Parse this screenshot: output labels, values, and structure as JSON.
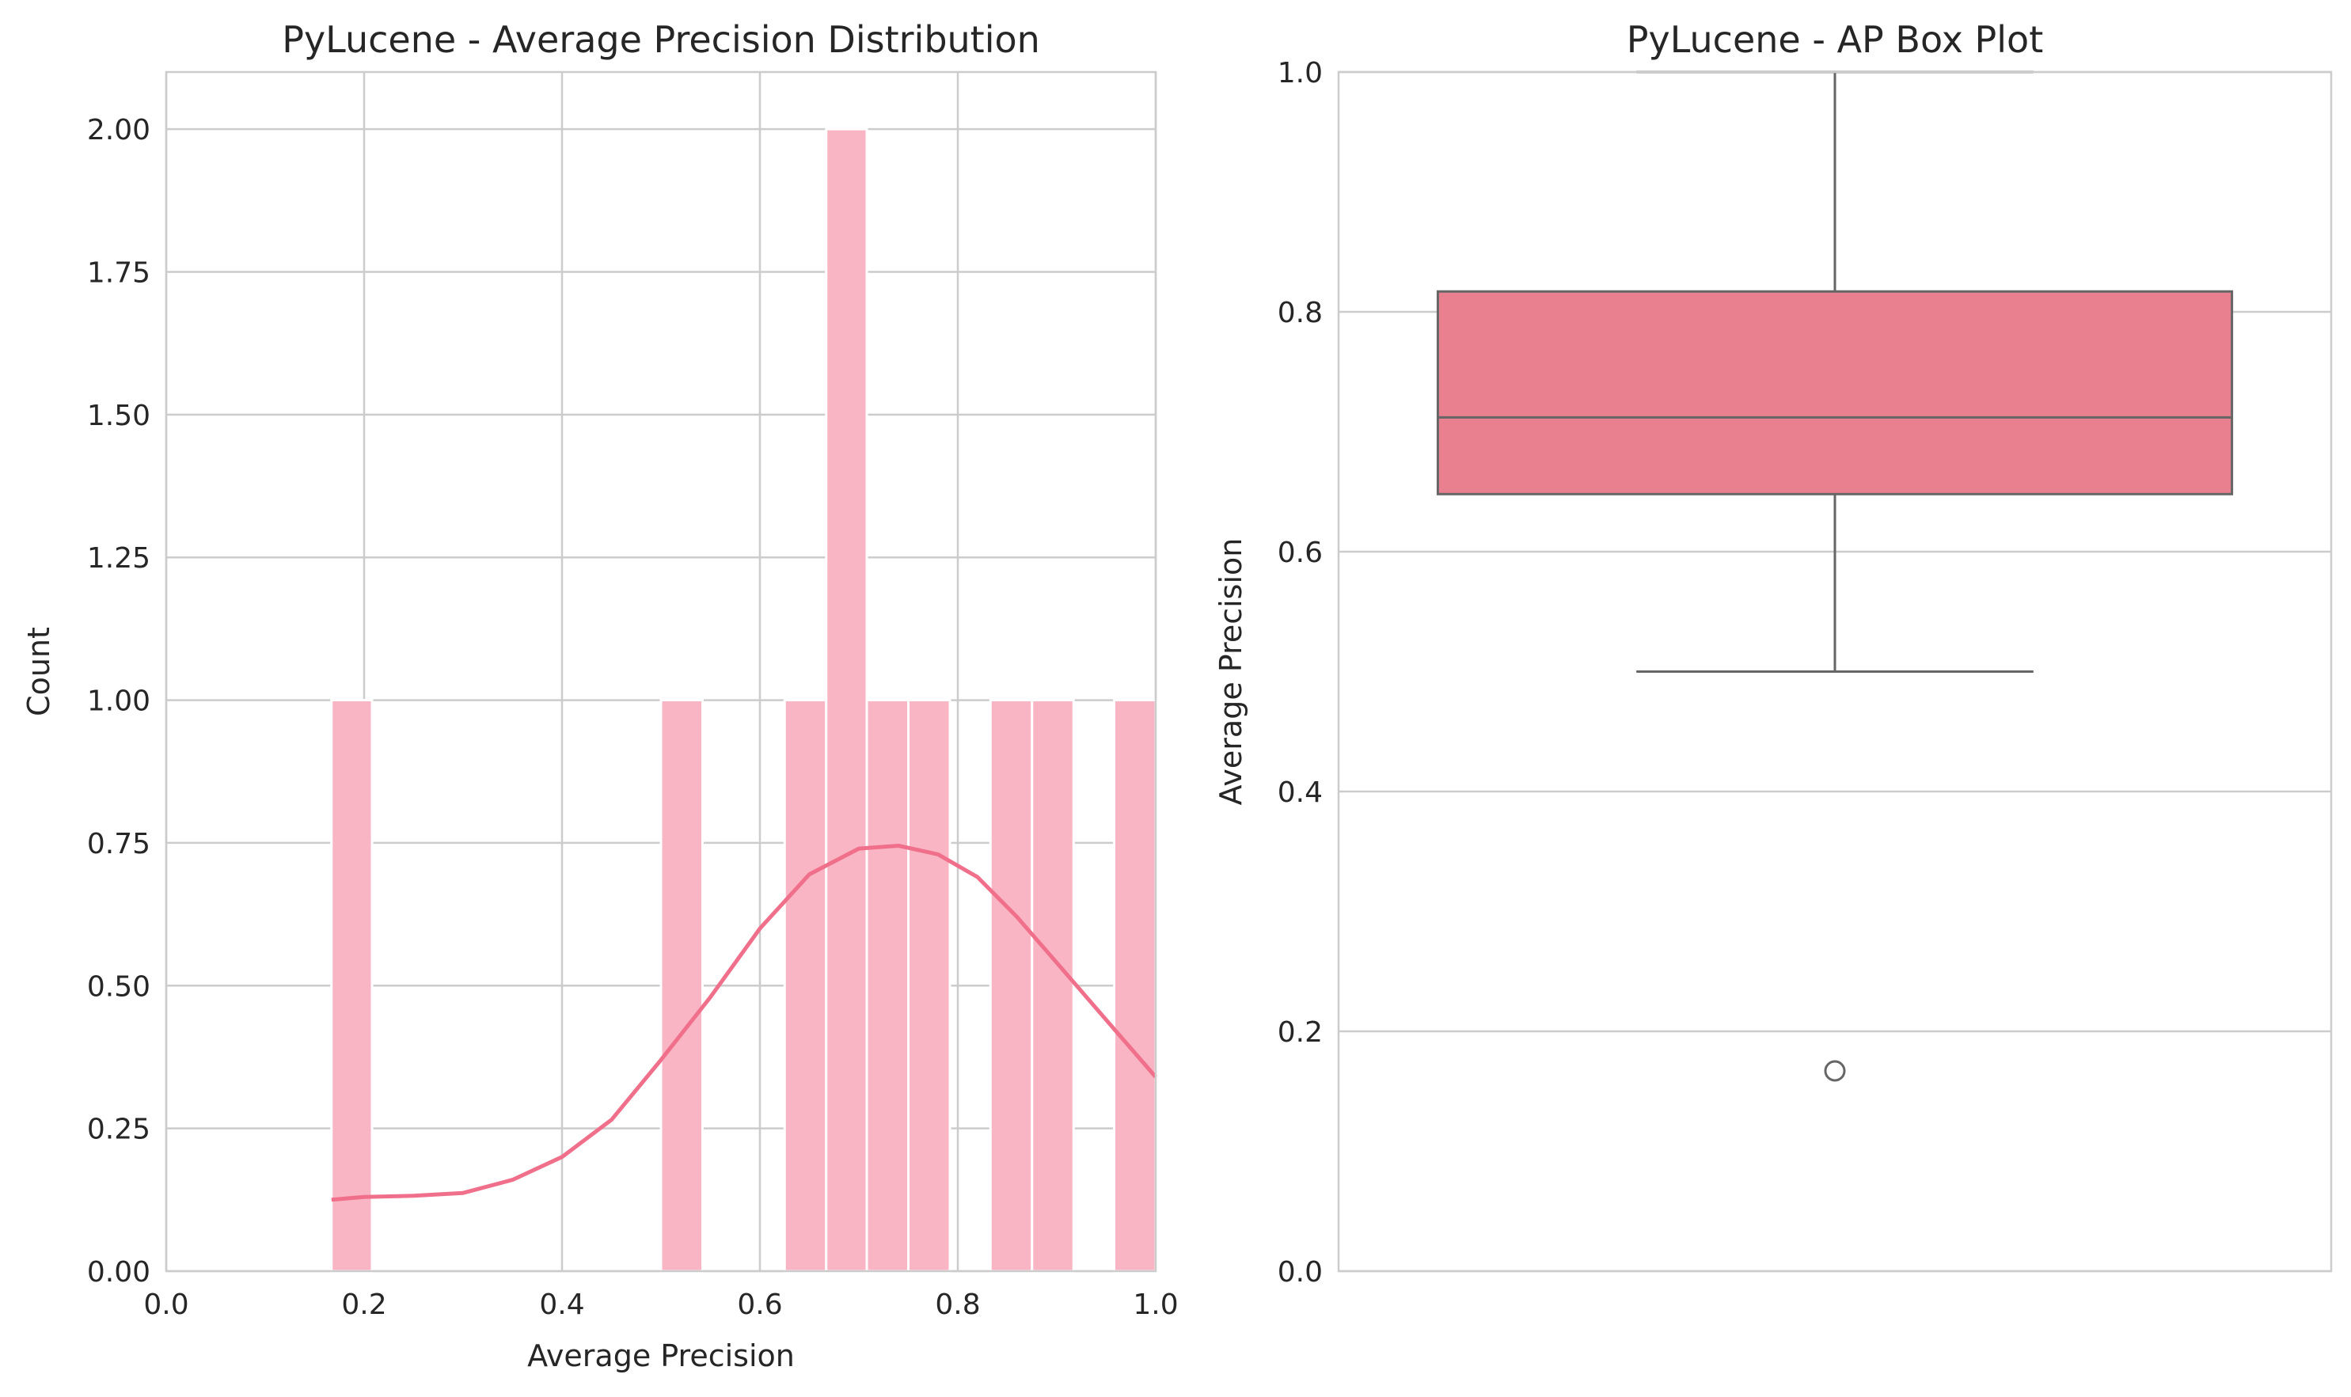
{
  "colors": {
    "bar": "#f9b5c4",
    "kde": "#f0708b",
    "box_fill": "#e8808f",
    "box_line": "#666666",
    "grid": "#cccccc",
    "frame": "#cccccc"
  },
  "chart_data": [
    {
      "type": "bar",
      "subtype": "histogram",
      "title": "PyLucene - Average Precision Distribution",
      "xlabel": "Average Precision",
      "ylabel": "Count",
      "xlim": [
        0.0,
        1.0
      ],
      "ylim": [
        0.0,
        2.1
      ],
      "xticks": [
        "0.0",
        "0.2",
        "0.4",
        "0.6",
        "0.8",
        "1.0"
      ],
      "yticks": [
        "0.00",
        "0.25",
        "0.50",
        "0.75",
        "1.00",
        "1.25",
        "1.50",
        "1.75",
        "2.00"
      ],
      "grid": true,
      "bins": [
        {
          "x0": 0.167,
          "x1": 0.208,
          "count": 1
        },
        {
          "x0": 0.5,
          "x1": 0.542,
          "count": 1
        },
        {
          "x0": 0.625,
          "x1": 0.667,
          "count": 1
        },
        {
          "x0": 0.667,
          "x1": 0.708,
          "count": 2
        },
        {
          "x0": 0.708,
          "x1": 0.75,
          "count": 1
        },
        {
          "x0": 0.75,
          "x1": 0.792,
          "count": 1
        },
        {
          "x0": 0.833,
          "x1": 0.875,
          "count": 1
        },
        {
          "x0": 0.875,
          "x1": 0.917,
          "count": 1
        },
        {
          "x0": 0.958,
          "x1": 1.0,
          "count": 1
        }
      ],
      "kde": {
        "x": [
          0.167,
          0.2,
          0.25,
          0.3,
          0.35,
          0.4,
          0.45,
          0.5,
          0.55,
          0.6,
          0.65,
          0.7,
          0.74,
          0.78,
          0.82,
          0.86,
          0.9,
          0.95,
          1.0
        ],
        "y": [
          0.125,
          0.13,
          0.132,
          0.137,
          0.16,
          0.2,
          0.265,
          0.37,
          0.48,
          0.6,
          0.695,
          0.74,
          0.745,
          0.73,
          0.69,
          0.62,
          0.54,
          0.44,
          0.34
        ]
      }
    },
    {
      "type": "box",
      "title": "PyLucene - AP Box Plot",
      "ylabel": "Average Precision",
      "ylim": [
        0.0,
        1.0
      ],
      "yticks": [
        "0.0",
        "0.2",
        "0.4",
        "0.6",
        "0.8",
        "1.0"
      ],
      "grid": true,
      "stats": {
        "whisker_low": 0.5,
        "q1": 0.648,
        "median": 0.712,
        "q3": 0.817,
        "whisker_high": 1.0
      },
      "outliers": [
        0.167
      ]
    }
  ]
}
